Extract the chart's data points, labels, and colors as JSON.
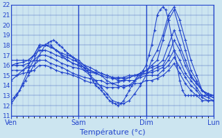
{
  "xlabel": "Température (°c)",
  "background_color": "#cce5f0",
  "grid_color": "#3355bb",
  "line_color": "#2244cc",
  "xlim": [
    0,
    72
  ],
  "ylim": [
    11,
    22
  ],
  "yticks": [
    11,
    12,
    13,
    14,
    15,
    16,
    17,
    18,
    19,
    20,
    21,
    22
  ],
  "xtick_positions": [
    0,
    24,
    48,
    72
  ],
  "xtick_labels": [
    "Ven",
    "Sam",
    "Dim",
    "Lun"
  ],
  "series": [
    {
      "x": [
        0,
        1,
        2,
        3,
        4,
        5,
        6,
        7,
        8,
        9,
        10,
        11,
        12,
        13,
        14,
        15,
        16,
        17,
        18,
        19,
        20,
        21,
        22,
        23,
        24,
        25,
        26,
        27,
        28,
        29,
        30,
        31,
        32,
        33,
        34,
        35,
        36,
        37,
        38,
        39,
        40,
        41,
        42,
        43,
        44,
        45,
        46,
        47,
        48,
        49,
        50,
        51,
        52,
        53,
        54,
        55,
        56,
        57,
        58,
        59,
        60,
        61,
        62,
        63,
        64,
        65,
        66,
        67,
        68,
        69,
        70,
        71,
        72
      ],
      "y": [
        12.5,
        12.8,
        13.2,
        13.5,
        14.0,
        14.5,
        15.0,
        15.5,
        16.0,
        16.5,
        17.0,
        17.5,
        18.0,
        18.2,
        18.4,
        18.5,
        18.3,
        18.0,
        17.8,
        17.5,
        17.2,
        17.0,
        16.8,
        16.5,
        16.2,
        16.0,
        15.7,
        15.5,
        15.0,
        14.5,
        14.0,
        13.8,
        13.5,
        13.2,
        12.8,
        12.5,
        12.3,
        12.2,
        12.0,
        12.2,
        12.5,
        13.0,
        13.5,
        14.0,
        14.5,
        15.0,
        15.2,
        15.5,
        16.0,
        17.0,
        18.0,
        19.5,
        21.0,
        21.5,
        21.8,
        21.5,
        20.5,
        19.0,
        17.5,
        16.0,
        14.5,
        13.5,
        13.0,
        13.0,
        13.0,
        13.0,
        13.0,
        13.0,
        13.0,
        13.0,
        13.0,
        13.0,
        13.0
      ]
    },
    {
      "x": [
        0,
        2,
        4,
        6,
        8,
        10,
        12,
        14,
        16,
        18,
        20,
        22,
        24,
        26,
        28,
        30,
        32,
        34,
        36,
        38,
        40,
        42,
        44,
        46,
        48,
        50,
        52,
        54,
        56,
        58,
        60,
        62,
        64,
        66,
        68,
        70,
        72
      ],
      "y": [
        12.2,
        13.0,
        14.2,
        15.5,
        16.5,
        17.8,
        18.0,
        18.0,
        17.5,
        17.0,
        16.5,
        16.2,
        16.0,
        15.5,
        15.0,
        14.5,
        13.8,
        13.2,
        12.5,
        12.3,
        12.2,
        12.5,
        13.2,
        14.0,
        15.0,
        16.5,
        17.5,
        19.0,
        21.0,
        21.8,
        20.5,
        18.5,
        16.5,
        15.0,
        13.5,
        13.0,
        12.8
      ]
    },
    {
      "x": [
        0,
        2,
        4,
        6,
        8,
        10,
        12,
        14,
        16,
        18,
        20,
        22,
        24,
        26,
        28,
        30,
        32,
        34,
        36,
        38,
        40,
        42,
        44,
        46,
        48,
        50,
        52,
        54,
        56,
        58,
        60,
        62,
        64,
        66,
        68,
        70,
        72
      ],
      "y": [
        14.5,
        15.0,
        15.5,
        16.0,
        17.0,
        18.0,
        18.0,
        17.8,
        17.5,
        17.2,
        17.0,
        16.8,
        16.5,
        16.0,
        15.5,
        15.2,
        15.0,
        14.5,
        14.2,
        14.0,
        13.8,
        14.0,
        14.5,
        15.0,
        15.5,
        16.0,
        16.5,
        18.5,
        20.5,
        21.5,
        19.5,
        17.5,
        15.5,
        14.5,
        13.5,
        13.2,
        13.0
      ]
    },
    {
      "x": [
        0,
        2,
        4,
        6,
        8,
        10,
        12,
        14,
        16,
        18,
        20,
        22,
        24,
        26,
        28,
        30,
        32,
        34,
        36,
        38,
        40,
        42,
        44,
        46,
        48,
        50,
        52,
        54,
        56,
        58,
        60,
        62,
        64,
        66,
        68,
        70,
        72
      ],
      "y": [
        16.0,
        16.2,
        16.3,
        16.5,
        17.0,
        18.0,
        18.0,
        17.8,
        17.5,
        17.0,
        16.8,
        16.5,
        16.3,
        16.0,
        15.8,
        15.5,
        15.2,
        15.0,
        14.8,
        14.5,
        14.5,
        14.8,
        15.0,
        15.2,
        15.5,
        15.8,
        16.0,
        16.5,
        18.0,
        19.5,
        18.0,
        16.5,
        15.0,
        14.2,
        13.5,
        13.2,
        13.0
      ]
    },
    {
      "x": [
        0,
        2,
        4,
        6,
        8,
        10,
        12,
        14,
        16,
        18,
        20,
        22,
        24,
        26,
        28,
        30,
        32,
        34,
        36,
        38,
        40,
        42,
        44,
        46,
        48,
        50,
        52,
        54,
        56,
        58,
        60,
        62,
        64,
        66,
        68,
        70,
        72
      ],
      "y": [
        16.5,
        16.5,
        16.5,
        16.5,
        17.0,
        17.5,
        17.5,
        17.3,
        17.0,
        16.8,
        16.5,
        16.2,
        16.0,
        15.8,
        15.5,
        15.3,
        15.2,
        15.0,
        14.8,
        14.8,
        14.8,
        15.0,
        15.0,
        15.2,
        15.2,
        15.5,
        15.8,
        16.0,
        17.0,
        18.5,
        17.5,
        16.0,
        14.8,
        14.2,
        13.5,
        13.0,
        12.8
      ]
    },
    {
      "x": [
        0,
        2,
        4,
        6,
        8,
        10,
        12,
        14,
        16,
        18,
        20,
        22,
        24,
        26,
        28,
        30,
        32,
        34,
        36,
        38,
        40,
        42,
        44,
        46,
        48,
        50,
        52,
        54,
        56,
        58,
        60,
        62,
        64,
        66,
        68,
        70,
        72
      ],
      "y": [
        16.0,
        16.0,
        16.0,
        16.2,
        16.5,
        17.0,
        17.0,
        16.8,
        16.5,
        16.2,
        16.0,
        15.8,
        15.7,
        15.5,
        15.3,
        15.2,
        15.0,
        14.8,
        14.7,
        14.7,
        14.7,
        14.8,
        15.0,
        15.0,
        15.2,
        15.3,
        15.5,
        15.8,
        16.5,
        17.5,
        16.5,
        15.2,
        14.5,
        13.8,
        13.0,
        12.8,
        12.5
      ]
    },
    {
      "x": [
        0,
        2,
        4,
        6,
        8,
        10,
        12,
        14,
        16,
        18,
        20,
        22,
        24,
        26,
        28,
        30,
        32,
        34,
        36,
        38,
        40,
        42,
        44,
        46,
        48,
        50,
        52,
        54,
        56,
        58,
        60,
        62,
        64,
        66,
        68,
        70,
        72
      ],
      "y": [
        15.5,
        15.5,
        15.5,
        15.8,
        16.0,
        16.5,
        16.5,
        16.2,
        16.0,
        15.8,
        15.5,
        15.2,
        15.0,
        14.8,
        14.7,
        14.5,
        14.5,
        14.2,
        14.2,
        14.3,
        14.5,
        14.5,
        14.5,
        14.8,
        15.0,
        15.0,
        15.0,
        15.5,
        16.0,
        16.8,
        15.8,
        14.8,
        14.0,
        13.5,
        12.8,
        12.5,
        12.5
      ]
    },
    {
      "x": [
        0,
        2,
        4,
        6,
        8,
        10,
        12,
        14,
        16,
        18,
        20,
        22,
        24,
        26,
        28,
        30,
        32,
        34,
        36,
        38,
        40,
        42,
        44,
        46,
        48,
        50,
        52,
        54,
        56,
        58,
        60,
        62,
        64,
        66,
        68,
        70,
        72
      ],
      "y": [
        15.0,
        15.0,
        15.2,
        15.3,
        15.5,
        16.0,
        16.0,
        15.8,
        15.5,
        15.3,
        15.2,
        15.0,
        14.8,
        14.5,
        14.3,
        14.2,
        14.0,
        13.8,
        13.8,
        13.8,
        14.0,
        14.0,
        14.2,
        14.2,
        14.5,
        14.5,
        14.7,
        15.0,
        15.5,
        16.2,
        15.2,
        14.2,
        13.5,
        13.0,
        12.5,
        12.5,
        12.5
      ]
    }
  ]
}
